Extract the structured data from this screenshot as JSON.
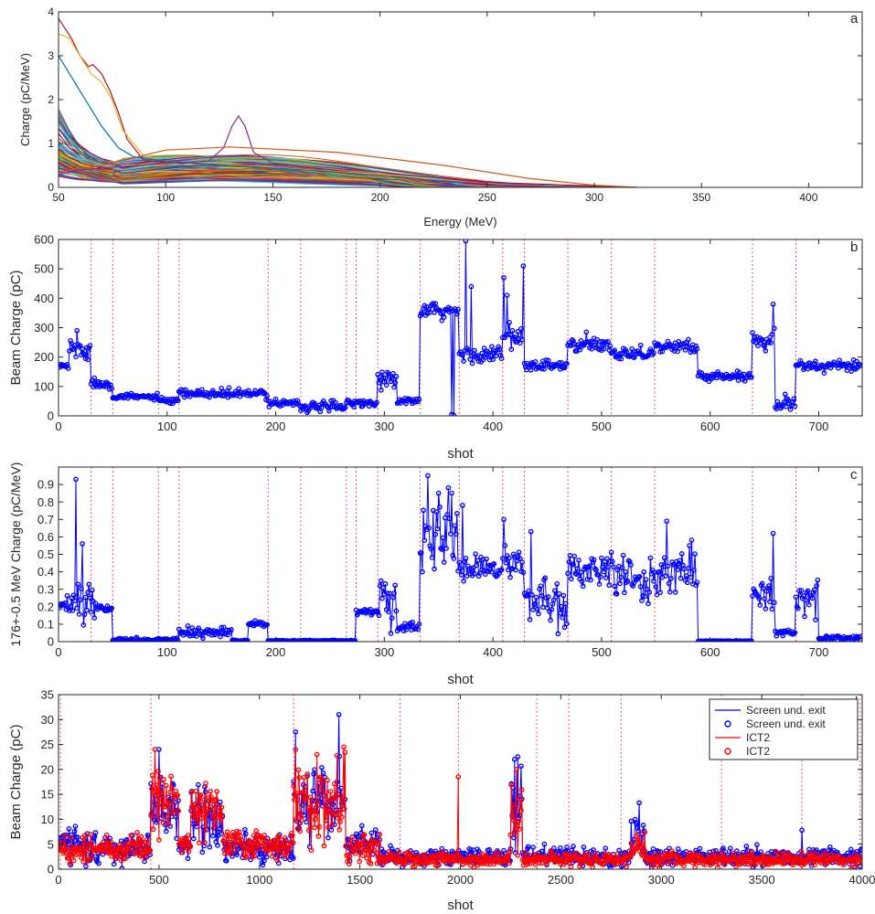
{
  "chart_data": [
    {
      "panel": "a",
      "type": "line",
      "xlabel": "Energy (MeV)",
      "ylabel": "Charge (pC/MeV)",
      "xlim": [
        50,
        425
      ],
      "ylim": [
        0,
        4
      ],
      "xticks": [
        50,
        100,
        150,
        200,
        250,
        300,
        350,
        400
      ],
      "yticks": [
        0,
        1,
        2,
        3,
        4
      ],
      "grid": false,
      "description_series": [
        {
          "x": [
            50,
            52,
            56,
            60,
            64,
            66,
            70,
            74,
            78,
            82,
            90,
            120,
            200,
            260,
            320
          ],
          "y": [
            3.85,
            3.7,
            3.4,
            3.0,
            2.75,
            2.8,
            2.6,
            2.2,
            1.7,
            1.1,
            0.6,
            0.55,
            0.3,
            0.1,
            0.0
          ]
        },
        {
          "x": [
            50,
            55,
            60,
            65,
            70,
            75,
            80,
            90,
            100,
            120,
            150,
            200,
            250
          ],
          "y": [
            3.5,
            3.4,
            3.0,
            2.6,
            2.4,
            2.0,
            1.3,
            0.7,
            0.6,
            0.55,
            0.45,
            0.3,
            0.1
          ]
        },
        {
          "x": [
            50,
            55,
            60,
            65,
            70,
            78,
            85,
            100,
            130,
            180,
            240
          ],
          "y": [
            3.0,
            2.6,
            2.2,
            1.8,
            1.4,
            0.9,
            0.7,
            0.6,
            0.5,
            0.35,
            0.1
          ]
        },
        {
          "x": [
            50,
            60,
            100,
            120,
            127,
            131,
            134,
            137,
            141,
            150,
            200,
            250
          ],
          "y": [
            0.3,
            0.4,
            0.55,
            0.6,
            0.9,
            1.4,
            1.63,
            1.4,
            0.8,
            0.55,
            0.35,
            0.1
          ]
        },
        {
          "x": [
            50,
            70,
            100,
            130,
            180,
            230,
            270,
            300,
            320
          ],
          "y": [
            0.35,
            0.5,
            0.85,
            0.92,
            0.8,
            0.5,
            0.2,
            0.05,
            0.0
          ]
        }
      ],
      "envelope": {
        "energy": [
          50,
          75,
          100,
          125,
          150,
          200,
          250,
          300,
          320
        ],
        "max_charge": [
          3.8,
          2.8,
          0.9,
          0.95,
          0.9,
          0.7,
          0.4,
          0.1,
          0.0
        ]
      }
    },
    {
      "panel": "b",
      "type": "line",
      "xlabel": "shot",
      "ylabel": "Beam Charge (pC)",
      "xlim": [
        0,
        740
      ],
      "ylim": [
        0,
        600
      ],
      "xticks": [
        0,
        100,
        200,
        300,
        400,
        500,
        600,
        700
      ],
      "yticks": [
        0,
        100,
        200,
        300,
        400,
        500,
        600
      ],
      "markers": "circle",
      "vlines": [
        30,
        50,
        92,
        111,
        193,
        223,
        265,
        274,
        294,
        333,
        369,
        409,
        429,
        469,
        509,
        549,
        639,
        679
      ],
      "segments": [
        {
          "x0": 0,
          "x1": 10,
          "mean": 170,
          "spread": 15
        },
        {
          "x0": 10,
          "x1": 30,
          "mean": 230,
          "spread": 50
        },
        {
          "x0": 30,
          "x1": 50,
          "mean": 110,
          "spread": 20
        },
        {
          "x0": 50,
          "x1": 92,
          "mean": 65,
          "spread": 10
        },
        {
          "x0": 92,
          "x1": 111,
          "mean": 50,
          "spread": 12
        },
        {
          "x0": 111,
          "x1": 193,
          "mean": 75,
          "spread": 15
        },
        {
          "x0": 193,
          "x1": 223,
          "mean": 45,
          "spread": 15
        },
        {
          "x0": 223,
          "x1": 265,
          "mean": 30,
          "spread": 20
        },
        {
          "x0": 265,
          "x1": 294,
          "mean": 45,
          "spread": 12
        },
        {
          "x0": 294,
          "x1": 312,
          "mean": 120,
          "spread": 40
        },
        {
          "x0": 312,
          "x1": 333,
          "mean": 50,
          "spread": 12
        },
        {
          "x0": 333,
          "x1": 369,
          "mean": 355,
          "spread": 35
        },
        {
          "x0": 369,
          "x1": 409,
          "mean": 210,
          "spread": 30
        },
        {
          "x0": 409,
          "x1": 429,
          "mean": 260,
          "spread": 60
        },
        {
          "x0": 429,
          "x1": 469,
          "mean": 170,
          "spread": 25
        },
        {
          "x0": 469,
          "x1": 509,
          "mean": 240,
          "spread": 30
        },
        {
          "x0": 509,
          "x1": 549,
          "mean": 215,
          "spread": 25
        },
        {
          "x0": 549,
          "x1": 589,
          "mean": 235,
          "spread": 25
        },
        {
          "x0": 589,
          "x1": 639,
          "mean": 135,
          "spread": 15
        },
        {
          "x0": 639,
          "x1": 660,
          "mean": 265,
          "spread": 40
        },
        {
          "x0": 660,
          "x1": 679,
          "mean": 45,
          "spread": 30
        },
        {
          "x0": 679,
          "x1": 740,
          "mean": 170,
          "spread": 20
        }
      ],
      "spikes": [
        [
          17,
          290
        ],
        [
          362,
          5
        ],
        [
          364,
          2
        ],
        [
          375,
          595
        ],
        [
          380,
          440
        ],
        [
          410,
          470
        ],
        [
          413,
          410
        ],
        [
          428,
          510
        ],
        [
          658,
          380
        ]
      ]
    },
    {
      "panel": "c",
      "type": "line",
      "xlabel": "shot",
      "ylabel": "176+-0.5 MeV Charge (pC/MeV)",
      "xlim": [
        0,
        740
      ],
      "ylim": [
        0,
        1.0
      ],
      "xticks": [
        0,
        100,
        200,
        300,
        400,
        500,
        600,
        700
      ],
      "yticks": [
        0,
        0.1,
        0.2,
        0.3,
        0.4,
        0.5,
        0.6,
        0.7,
        0.8,
        0.9
      ],
      "markers": "circle",
      "vlines": [
        30,
        50,
        92,
        111,
        193,
        223,
        265,
        274,
        294,
        333,
        369,
        409,
        429,
        469,
        509,
        549,
        639,
        679
      ],
      "segments": [
        {
          "x0": 0,
          "x1": 12,
          "mean": 0.2,
          "spread": 0.04
        },
        {
          "x0": 12,
          "x1": 35,
          "mean": 0.25,
          "spread": 0.15
        },
        {
          "x0": 35,
          "x1": 50,
          "mean": 0.19,
          "spread": 0.02
        },
        {
          "x0": 50,
          "x1": 111,
          "mean": 0.01,
          "spread": 0.01
        },
        {
          "x0": 111,
          "x1": 160,
          "mean": 0.05,
          "spread": 0.03
        },
        {
          "x0": 160,
          "x1": 175,
          "mean": 0.005,
          "spread": 0.005
        },
        {
          "x0": 175,
          "x1": 193,
          "mean": 0.1,
          "spread": 0.015
        },
        {
          "x0": 193,
          "x1": 274,
          "mean": 0.005,
          "spread": 0.005
        },
        {
          "x0": 274,
          "x1": 294,
          "mean": 0.17,
          "spread": 0.02
        },
        {
          "x0": 294,
          "x1": 312,
          "mean": 0.25,
          "spread": 0.15
        },
        {
          "x0": 312,
          "x1": 333,
          "mean": 0.08,
          "spread": 0.03
        },
        {
          "x0": 333,
          "x1": 369,
          "mean": 0.6,
          "spread": 0.25
        },
        {
          "x0": 369,
          "x1": 409,
          "mean": 0.42,
          "spread": 0.08
        },
        {
          "x0": 409,
          "x1": 429,
          "mean": 0.45,
          "spread": 0.12
        },
        {
          "x0": 429,
          "x1": 469,
          "mean": 0.22,
          "spread": 0.15
        },
        {
          "x0": 469,
          "x1": 509,
          "mean": 0.42,
          "spread": 0.12
        },
        {
          "x0": 509,
          "x1": 549,
          "mean": 0.35,
          "spread": 0.15
        },
        {
          "x0": 549,
          "x1": 589,
          "mean": 0.4,
          "spread": 0.15
        },
        {
          "x0": 589,
          "x1": 639,
          "mean": 0.003,
          "spread": 0.003
        },
        {
          "x0": 639,
          "x1": 660,
          "mean": 0.3,
          "spread": 0.12
        },
        {
          "x0": 660,
          "x1": 679,
          "mean": 0.05,
          "spread": 0.03
        },
        {
          "x0": 679,
          "x1": 700,
          "mean": 0.25,
          "spread": 0.1
        },
        {
          "x0": 700,
          "x1": 740,
          "mean": 0.02,
          "spread": 0.02
        }
      ],
      "spikes": [
        [
          16,
          0.93
        ],
        [
          22,
          0.56
        ],
        [
          340,
          0.95
        ],
        [
          350,
          0.85
        ],
        [
          362,
          0.85
        ],
        [
          372,
          0.78
        ],
        [
          410,
          0.7
        ],
        [
          435,
          0.63
        ],
        [
          560,
          0.69
        ],
        [
          658,
          0.62
        ]
      ]
    },
    {
      "panel": "d",
      "type": "line",
      "xlabel": "shot",
      "ylabel": "Beam Charge (pC)",
      "xlim": [
        0,
        4000
      ],
      "ylim": [
        0,
        35
      ],
      "xticks": [
        0,
        500,
        1000,
        1500,
        2000,
        2500,
        3000,
        3500,
        4000
      ],
      "yticks": [
        0,
        5,
        10,
        15,
        20,
        25,
        30,
        35
      ],
      "legend_position": "top-right",
      "vlines": [
        10,
        460,
        1170,
        1700,
        1990,
        2380,
        2540,
        2800,
        3300,
        3700,
        3990
      ],
      "series": [
        {
          "name": "Screen und. exit",
          "style": "line",
          "color": "#0000ff"
        },
        {
          "name": "Screen und. exit",
          "style": "circle",
          "color": "#0000ff"
        },
        {
          "name": "ICT2",
          "style": "line",
          "color": "#ff0000"
        },
        {
          "name": "ICT2",
          "style": "circle",
          "color": "#ff0000"
        }
      ],
      "segments_blue": [
        {
          "x0": 0,
          "x1": 100,
          "mean": 6,
          "spread": 4
        },
        {
          "x0": 100,
          "x1": 460,
          "mean": 4,
          "spread": 3
        },
        {
          "x0": 460,
          "x1": 600,
          "mean": 12,
          "spread": 8
        },
        {
          "x0": 600,
          "x1": 660,
          "mean": 5,
          "spread": 3
        },
        {
          "x0": 660,
          "x1": 820,
          "mean": 10,
          "spread": 7
        },
        {
          "x0": 820,
          "x1": 1170,
          "mean": 4,
          "spread": 3
        },
        {
          "x0": 1170,
          "x1": 1430,
          "mean": 13,
          "spread": 10
        },
        {
          "x0": 1430,
          "x1": 1600,
          "mean": 5,
          "spread": 3
        },
        {
          "x0": 1600,
          "x1": 2250,
          "mean": 2.5,
          "spread": 2
        },
        {
          "x0": 2250,
          "x1": 2310,
          "mean": 12,
          "spread": 9
        },
        {
          "x0": 2310,
          "x1": 2850,
          "mean": 2.5,
          "spread": 2
        },
        {
          "x0": 2850,
          "x1": 2920,
          "mean": 6,
          "spread": 5
        },
        {
          "x0": 2920,
          "x1": 4000,
          "mean": 2.5,
          "spread": 2
        }
      ],
      "segments_red": [
        {
          "x0": 0,
          "x1": 460,
          "mean": 4,
          "spread": 3
        },
        {
          "x0": 460,
          "x1": 600,
          "mean": 14,
          "spread": 8
        },
        {
          "x0": 600,
          "x1": 660,
          "mean": 5,
          "spread": 3
        },
        {
          "x0": 660,
          "x1": 820,
          "mean": 11,
          "spread": 6
        },
        {
          "x0": 820,
          "x1": 1170,
          "mean": 5,
          "spread": 3
        },
        {
          "x0": 1170,
          "x1": 1430,
          "mean": 13,
          "spread": 9
        },
        {
          "x0": 1430,
          "x1": 1600,
          "mean": 4,
          "spread": 3
        },
        {
          "x0": 1600,
          "x1": 2250,
          "mean": 2,
          "spread": 1.5
        },
        {
          "x0": 2250,
          "x1": 2310,
          "mean": 12,
          "spread": 8
        },
        {
          "x0": 2310,
          "x1": 2850,
          "mean": 2,
          "spread": 1.5
        },
        {
          "x0": 2850,
          "x1": 2920,
          "mean": 5,
          "spread": 3
        },
        {
          "x0": 2920,
          "x1": 4000,
          "mean": 2,
          "spread": 1.5
        }
      ],
      "spikes_blue": [
        [
          1180,
          27.5
        ],
        [
          1395,
          31
        ],
        [
          500,
          24
        ],
        [
          2270,
          22
        ],
        [
          2890,
          13.3
        ],
        [
          3700,
          7.8
        ]
      ],
      "spikes_red": [
        [
          480,
          24
        ],
        [
          1180,
          24
        ],
        [
          1420,
          24.5
        ],
        [
          2280,
          20
        ],
        [
          1990,
          18.5
        ]
      ]
    }
  ]
}
